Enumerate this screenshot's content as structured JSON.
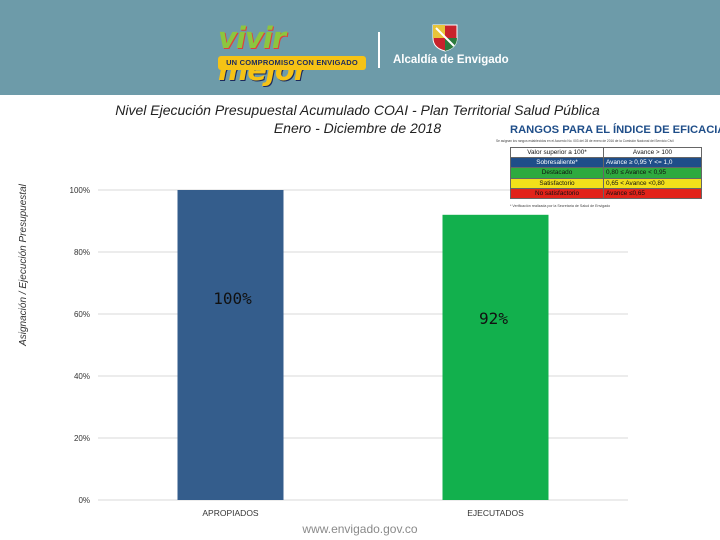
{
  "header": {
    "brand_vivir": "vivir",
    "brand_mejor": "mejor",
    "tagline": "UN COMPROMISO CON ENVIGADO",
    "institution": "Alcaldía de Envigado",
    "colors": {
      "banner": "#6d9ba9",
      "tagline_bg": "#f6c315",
      "brand_vivir": "#8cc63f",
      "brand_mejor": "#f6c315"
    }
  },
  "ranges": {
    "title": "RANGOS PARA EL ÍNDICE DE EFICACIA",
    "note": "Se asignan los rangos establecidos en el Acuerdo No. 003 del 28 de enero de 2016 de la Comisión Nacional del Servicio Civil",
    "header": {
      "c1": "Valor superior a 100*",
      "c2": "Avance > 100"
    },
    "rows": [
      {
        "label": "Sobresaliente*",
        "range": "Avance ≥ 0,95 Y <= 1,0",
        "color": "#1f4e89",
        "text_color": "#ffffff"
      },
      {
        "label": "Destacado",
        "range": "0,80 ≤ Avance < 0,95",
        "color": "#2eaa3f",
        "text_color": "#111111"
      },
      {
        "label": "Satisfactorio",
        "range": "0,65 < Avance <0,80",
        "color": "#f2e01a",
        "text_color": "#111111"
      },
      {
        "label": "No satisfactorio",
        "range": "Avance ≤0,65",
        "color": "#e2231a",
        "text_color": "#111111"
      }
    ],
    "footnote": "* Verificación realizada por la Secretaría de Salud de Envigado"
  },
  "footer": {
    "url": "www.envigado.gov.co"
  },
  "chart_data": {
    "type": "bar",
    "title": "Nivel Ejecución Presupuestal Acumulado COAI - Plan Territorial Salud Pública",
    "subtitle": "Enero - Diciembre de 2018",
    "ylabel": "Asignación / Ejecución Presupuestal",
    "xlabel": "",
    "categories": [
      "APROPIADOS",
      "EJECUTADOS"
    ],
    "values": [
      100,
      92
    ],
    "data_labels": [
      "100%",
      "92%"
    ],
    "yticks": [
      "0%",
      "20%",
      "40%",
      "60%",
      "80%",
      "100%"
    ],
    "ylim": [
      0,
      100
    ],
    "grid": true,
    "colors": [
      "#345d8c",
      "#12b04d"
    ]
  }
}
